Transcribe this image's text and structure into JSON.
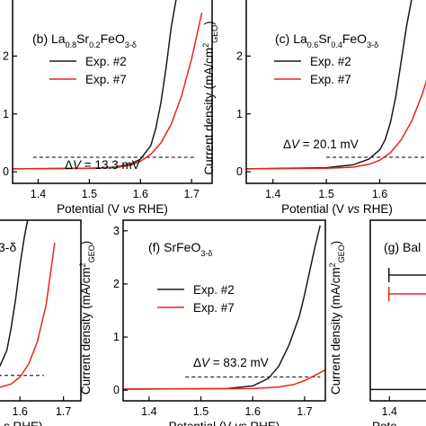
{
  "colors": {
    "exp2": "#1a1a1a",
    "exp7": "#e8261c",
    "axis": "#000000"
  },
  "chart_data": [
    {
      "id": "b",
      "type": "line",
      "title_prefix": "(b) ",
      "title_html": "La<tspan baseline-shift='sub' font-size='9'>0.8</tspan>Sr<tspan baseline-shift='sub' font-size='9'>0.2</tspan>FeO<tspan baseline-shift='sub' font-size='9'>3-δ</tspan>",
      "title_text": "(b) La0.8Sr0.2FeO3-δ",
      "xlabel": "Potential (V vs RHE)",
      "ylabel": "",
      "xlim": [
        1.35,
        1.74
      ],
      "ylim": [
        -0.2,
        3.0
      ],
      "xticks": [
        1.4,
        1.5,
        1.6,
        1.7
      ],
      "xtick_labels": [
        "1.4",
        "1.5",
        "1.6",
        "1.7"
      ],
      "yticks": [
        0,
        1,
        2
      ],
      "ytick_labels": [
        "0",
        "1",
        "2"
      ],
      "legend": [
        "Exp. #2",
        "Exp. #7"
      ],
      "annotation": "ΔV = 13.3 mV",
      "dashed_y": 0.25,
      "series": [
        {
          "name": "Exp. #2",
          "x": [
            1.35,
            1.5,
            1.55,
            1.58,
            1.6,
            1.62,
            1.63,
            1.64,
            1.65,
            1.66,
            1.67
          ],
          "y": [
            0.05,
            0.06,
            0.08,
            0.13,
            0.22,
            0.45,
            0.75,
            1.2,
            1.8,
            2.5,
            3.0
          ]
        },
        {
          "name": "Exp. #7",
          "x": [
            1.35,
            1.5,
            1.55,
            1.58,
            1.6,
            1.62,
            1.64,
            1.66,
            1.68,
            1.7,
            1.72
          ],
          "y": [
            0.05,
            0.06,
            0.07,
            0.11,
            0.18,
            0.3,
            0.5,
            0.82,
            1.3,
            1.95,
            2.75
          ]
        }
      ]
    },
    {
      "id": "c",
      "type": "line",
      "title_prefix": "(c) ",
      "title_html": "La<tspan baseline-shift='sub' font-size='9'>0.6</tspan>Sr<tspan baseline-shift='sub' font-size='9'>0.4</tspan>FeO<tspan baseline-shift='sub' font-size='9'>3-δ</tspan>",
      "title_text": "(c) La0.6Sr0.4FeO3-δ",
      "xlabel": "Potential (V vs RHE)",
      "ylabel": "Current density (mA/cm²GEO)",
      "xlim": [
        1.35,
        1.69
      ],
      "ylim": [
        -0.2,
        3.0
      ],
      "xticks": [
        1.4,
        1.5,
        1.6
      ],
      "xtick_labels": [
        "1.4",
        "1.5",
        "1.6"
      ],
      "yticks": [
        0,
        1,
        2
      ],
      "ytick_labels": [
        "0",
        "1",
        "2"
      ],
      "legend": [
        "Exp. #2",
        "Exp. #7"
      ],
      "annotation": "ΔV = 20.1 mV",
      "dashed_y": 0.25,
      "series": [
        {
          "name": "Exp. #2",
          "x": [
            1.35,
            1.5,
            1.55,
            1.58,
            1.6,
            1.61,
            1.62,
            1.63,
            1.64,
            1.65,
            1.66
          ],
          "y": [
            0.05,
            0.07,
            0.12,
            0.22,
            0.38,
            0.55,
            0.85,
            1.3,
            1.9,
            2.5,
            3.0
          ]
        },
        {
          "name": "Exp. #7",
          "x": [
            1.35,
            1.5,
            1.55,
            1.58,
            1.6,
            1.62,
            1.64,
            1.66,
            1.68,
            1.69
          ],
          "y": [
            0.05,
            0.06,
            0.08,
            0.13,
            0.2,
            0.33,
            0.55,
            0.88,
            1.35,
            1.65
          ]
        }
      ]
    },
    {
      "id": "e",
      "type": "line",
      "title_prefix": "",
      "title_html": "3-δ",
      "title_text": "3-δ",
      "xlabel": "s RHE)",
      "ylabel": "",
      "xlim": [
        1.55,
        1.74
      ],
      "ylim": [
        -0.2,
        3.0
      ],
      "xticks": [
        1.6,
        1.7
      ],
      "xtick_labels": [
        "1.6",
        "1.7"
      ],
      "yticks": [],
      "ytick_labels": [],
      "legend": [],
      "annotation": "",
      "dashed_y": 0.25,
      "series": [
        {
          "name": "Exp. #2",
          "x": [
            1.55,
            1.57,
            1.58,
            1.59,
            1.6,
            1.61,
            1.62
          ],
          "y": [
            0.35,
            0.7,
            1.1,
            1.6,
            2.2,
            2.7,
            3.1
          ]
        },
        {
          "name": "Exp. #7",
          "x": [
            1.55,
            1.58,
            1.6,
            1.62,
            1.64,
            1.66,
            1.68
          ],
          "y": [
            0.03,
            0.1,
            0.22,
            0.45,
            0.85,
            1.5,
            2.6
          ]
        }
      ]
    },
    {
      "id": "f",
      "type": "line",
      "title_prefix": "(f) ",
      "title_html": "SrFeO<tspan baseline-shift='sub' font-size='9'>3-δ</tspan>",
      "title_text": "(f) SrFeO3-δ",
      "xlabel": "Potential (V vs RHE)",
      "ylabel": "Current density (mA/cm²GEO)",
      "xlim": [
        1.35,
        1.74
      ],
      "ylim": [
        -0.2,
        3.2
      ],
      "xticks": [
        1.4,
        1.5,
        1.6,
        1.7
      ],
      "xtick_labels": [
        "1.4",
        "1.5",
        "1.6",
        "1.7"
      ],
      "yticks": [
        0,
        1,
        2,
        3
      ],
      "ytick_labels": [
        "0",
        "1",
        "2",
        "3"
      ],
      "legend": [
        "Exp. #2",
        "Exp. #7"
      ],
      "annotation": "ΔV = 83.2 mV",
      "dashed_y": 0.25,
      "series": [
        {
          "name": "Exp. #2",
          "x": [
            1.35,
            1.55,
            1.6,
            1.63,
            1.65,
            1.67,
            1.69,
            1.7,
            1.71,
            1.72,
            1.73
          ],
          "y": [
            0.02,
            0.03,
            0.08,
            0.22,
            0.45,
            0.85,
            1.4,
            1.8,
            2.25,
            2.7,
            3.1
          ]
        },
        {
          "name": "Exp. #7",
          "x": [
            1.35,
            1.6,
            1.65,
            1.68,
            1.7,
            1.72,
            1.74
          ],
          "y": [
            0.02,
            0.03,
            0.06,
            0.11,
            0.18,
            0.28,
            0.38
          ]
        }
      ]
    },
    {
      "id": "g",
      "type": "line",
      "title_prefix": "(g) ",
      "title_html": "Bal",
      "title_text": "(g) Bal",
      "xlabel": "Pote",
      "ylabel": "Current density (mA/cm²GEO)",
      "xlim": [
        1.35,
        1.5
      ],
      "ylim": [
        -0.2,
        3.0
      ],
      "xticks": [
        1.4
      ],
      "xtick_labels": [
        "1.4"
      ],
      "yticks": [],
      "ytick_labels": [],
      "legend": [],
      "annotation": "",
      "dashed_y": null,
      "series": [
        {
          "name": "Exp. #2",
          "x": [
            1.35,
            1.5
          ],
          "y": [
            0.0,
            0.0
          ]
        }
      ]
    }
  ]
}
